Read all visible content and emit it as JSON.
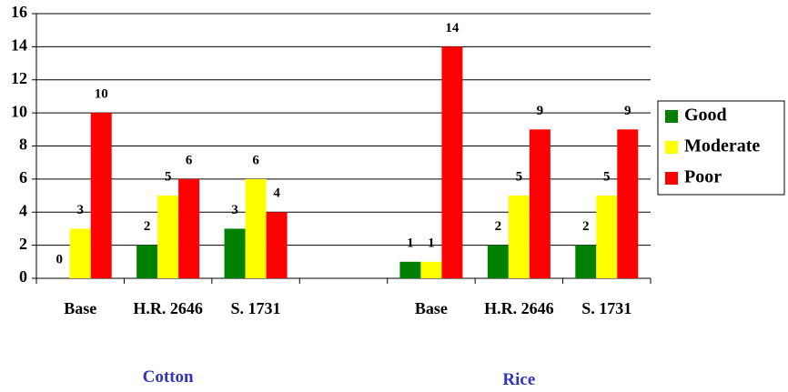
{
  "chart_data": {
    "type": "bar",
    "categories": [
      "Base",
      "H.R. 2646",
      "S. 1731",
      null,
      "Base",
      "H.R. 2646",
      "S. 1731"
    ],
    "group_labels": [
      "Cotton",
      "Rice"
    ],
    "series": [
      {
        "name": "Good",
        "color": "#008000",
        "values": [
          0,
          2,
          3,
          null,
          1,
          2,
          2
        ]
      },
      {
        "name": "Moderate",
        "color": "#ffff00",
        "values": [
          3,
          5,
          6,
          null,
          1,
          5,
          5
        ]
      },
      {
        "name": "Poor",
        "color": "#ff0000",
        "values": [
          10,
          6,
          4,
          null,
          14,
          9,
          9
        ]
      }
    ],
    "ylim": [
      0,
      16
    ],
    "yticks": [
      0,
      2,
      4,
      6,
      8,
      10,
      12,
      14,
      16
    ],
    "grid": true,
    "legend": "right"
  }
}
